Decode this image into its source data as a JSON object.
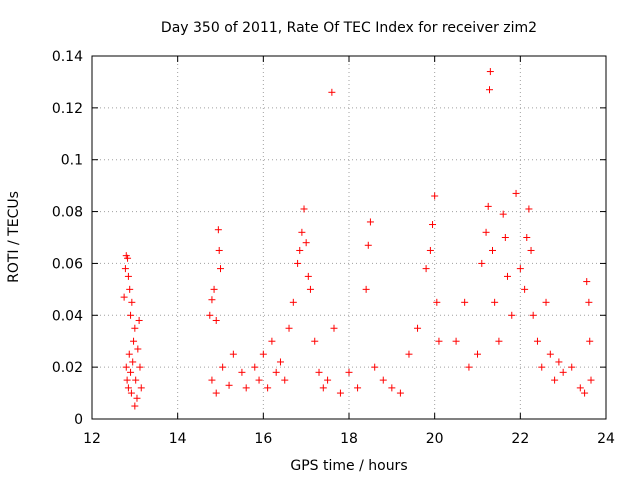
{
  "chart_data": {
    "type": "scatter",
    "title": "Day 350 of 2011, Rate Of TEC Index for receiver zim2",
    "xlabel": "GPS time / hours",
    "ylabel": "ROTI / TECUs",
    "xlim": [
      12,
      24
    ],
    "ylim": [
      0,
      0.14
    ],
    "xticks": [
      12,
      14,
      16,
      18,
      20,
      22,
      24
    ],
    "yticks": [
      0,
      0.02,
      0.04,
      0.06,
      0.08,
      0.1,
      0.12,
      0.14
    ],
    "grid": true,
    "marker": "+",
    "color": "#ff0000",
    "series": [
      {
        "name": "ROTI",
        "points": [
          [
            12.75,
            0.047
          ],
          [
            12.78,
            0.058
          ],
          [
            12.8,
            0.063
          ],
          [
            12.83,
            0.062
          ],
          [
            12.85,
            0.055
          ],
          [
            12.88,
            0.05
          ],
          [
            12.8,
            0.02
          ],
          [
            12.82,
            0.015
          ],
          [
            12.85,
            0.012
          ],
          [
            12.87,
            0.025
          ],
          [
            12.9,
            0.018
          ],
          [
            12.92,
            0.01
          ],
          [
            12.95,
            0.022
          ],
          [
            12.97,
            0.03
          ],
          [
            13.0,
            0.035
          ],
          [
            13.02,
            0.015
          ],
          [
            13.05,
            0.008
          ],
          [
            13.07,
            0.027
          ],
          [
            13.1,
            0.038
          ],
          [
            13.12,
            0.02
          ],
          [
            13.15,
            0.012
          ],
          [
            12.9,
            0.04
          ],
          [
            12.93,
            0.045
          ],
          [
            13.0,
            0.005
          ],
          [
            14.75,
            0.04
          ],
          [
            14.8,
            0.046
          ],
          [
            14.85,
            0.05
          ],
          [
            14.9,
            0.038
          ],
          [
            14.95,
            0.073
          ],
          [
            14.97,
            0.065
          ],
          [
            15.0,
            0.058
          ],
          [
            14.8,
            0.015
          ],
          [
            14.9,
            0.01
          ],
          [
            15.05,
            0.02
          ],
          [
            15.2,
            0.013
          ],
          [
            15.3,
            0.025
          ],
          [
            15.5,
            0.018
          ],
          [
            15.6,
            0.012
          ],
          [
            15.8,
            0.02
          ],
          [
            15.9,
            0.015
          ],
          [
            16.0,
            0.025
          ],
          [
            16.1,
            0.012
          ],
          [
            16.2,
            0.03
          ],
          [
            16.3,
            0.018
          ],
          [
            16.4,
            0.022
          ],
          [
            16.5,
            0.015
          ],
          [
            16.6,
            0.035
          ],
          [
            16.7,
            0.045
          ],
          [
            16.8,
            0.06
          ],
          [
            16.85,
            0.065
          ],
          [
            16.9,
            0.072
          ],
          [
            16.95,
            0.081
          ],
          [
            17.0,
            0.068
          ],
          [
            17.05,
            0.055
          ],
          [
            17.1,
            0.05
          ],
          [
            17.2,
            0.03
          ],
          [
            17.3,
            0.018
          ],
          [
            17.4,
            0.012
          ],
          [
            17.5,
            0.015
          ],
          [
            17.6,
            0.126
          ],
          [
            17.65,
            0.035
          ],
          [
            17.8,
            0.01
          ],
          [
            18.0,
            0.018
          ],
          [
            18.2,
            0.012
          ],
          [
            18.4,
            0.05
          ],
          [
            18.45,
            0.067
          ],
          [
            18.5,
            0.076
          ],
          [
            18.6,
            0.02
          ],
          [
            18.8,
            0.015
          ],
          [
            19.0,
            0.012
          ],
          [
            19.2,
            0.01
          ],
          [
            19.4,
            0.025
          ],
          [
            19.6,
            0.035
          ],
          [
            19.8,
            0.058
          ],
          [
            19.9,
            0.065
          ],
          [
            19.95,
            0.075
          ],
          [
            20.0,
            0.086
          ],
          [
            20.05,
            0.045
          ],
          [
            20.1,
            0.03
          ],
          [
            20.5,
            0.03
          ],
          [
            20.7,
            0.045
          ],
          [
            20.8,
            0.02
          ],
          [
            21.0,
            0.025
          ],
          [
            21.1,
            0.06
          ],
          [
            21.2,
            0.072
          ],
          [
            21.25,
            0.082
          ],
          [
            21.28,
            0.127
          ],
          [
            21.3,
            0.134
          ],
          [
            21.35,
            0.065
          ],
          [
            21.4,
            0.045
          ],
          [
            21.5,
            0.03
          ],
          [
            21.6,
            0.079
          ],
          [
            21.65,
            0.07
          ],
          [
            21.7,
            0.055
          ],
          [
            21.8,
            0.04
          ],
          [
            21.9,
            0.087
          ],
          [
            22.0,
            0.058
          ],
          [
            22.1,
            0.05
          ],
          [
            22.15,
            0.07
          ],
          [
            22.2,
            0.081
          ],
          [
            22.25,
            0.065
          ],
          [
            22.3,
            0.04
          ],
          [
            22.4,
            0.03
          ],
          [
            22.5,
            0.02
          ],
          [
            22.6,
            0.045
          ],
          [
            22.7,
            0.025
          ],
          [
            22.8,
            0.015
          ],
          [
            22.9,
            0.022
          ],
          [
            23.0,
            0.018
          ],
          [
            23.2,
            0.02
          ],
          [
            23.4,
            0.012
          ],
          [
            23.5,
            0.01
          ],
          [
            23.55,
            0.053
          ],
          [
            23.6,
            0.045
          ],
          [
            23.62,
            0.03
          ],
          [
            23.65,
            0.015
          ]
        ]
      }
    ]
  }
}
